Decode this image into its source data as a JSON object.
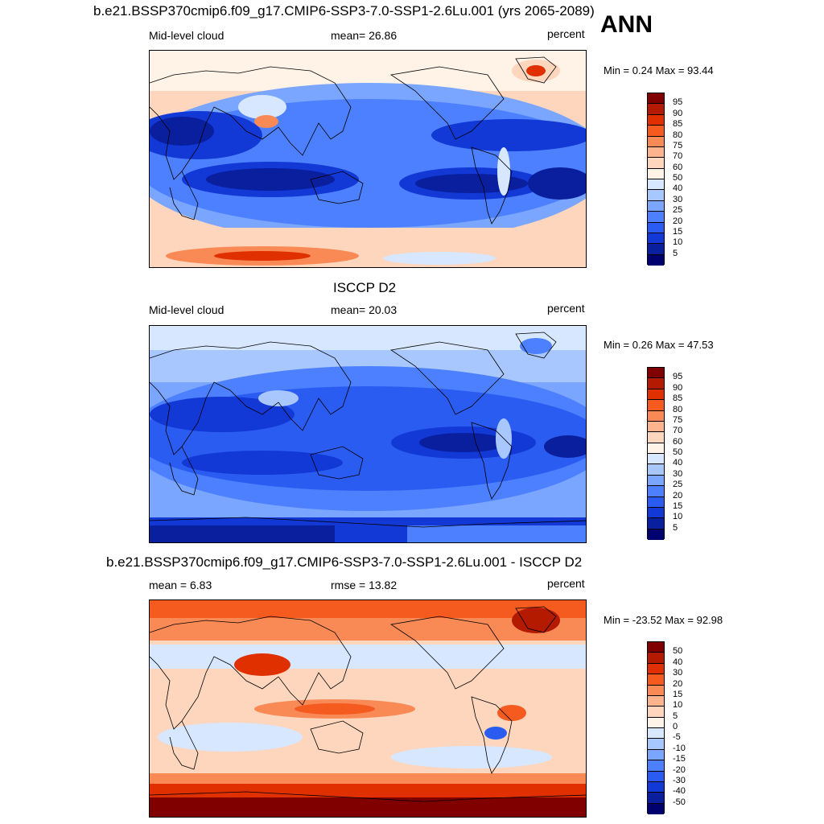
{
  "top_title": "b.e21.BSSP370cmip6.f09_g17.CMIP6-SSP3-7.0-SSP1-2.6Lu.001 (yrs 2065-2089)",
  "season": "ANN",
  "panels": [
    {
      "title": "",
      "left_label": "Mid-level cloud",
      "center_label": "mean=  26.86",
      "right_label": "percent",
      "minmax": "Min =   0.24 Max =  93.44",
      "levels": [
        "95",
        "90",
        "85",
        "80",
        "75",
        "70",
        "60",
        "50",
        "40",
        "30",
        "25",
        "20",
        "15",
        "10",
        "5"
      ]
    },
    {
      "title": "ISCCP D2",
      "left_label": "Mid-level cloud",
      "center_label": "mean=  20.03",
      "right_label": "percent",
      "minmax": "Min =   0.26 Max =  47.53",
      "levels": [
        "95",
        "90",
        "85",
        "80",
        "75",
        "70",
        "60",
        "50",
        "40",
        "30",
        "25",
        "20",
        "15",
        "10",
        "5"
      ]
    },
    {
      "title": "b.e21.BSSP370cmip6.f09_g17.CMIP6-SSP3-7.0-SSP1-2.6Lu.001 - ISCCP D2",
      "left_label": "mean =   6.83",
      "center_label": "rmse =  13.82",
      "right_label": "percent",
      "minmax": "Min = -23.52 Max =  92.98",
      "levels": [
        "50",
        "40",
        "30",
        "20",
        "15",
        "10",
        "5",
        "0",
        "-5",
        "-10",
        "-15",
        "-20",
        "-30",
        "-40",
        "-50"
      ]
    }
  ],
  "colors": {
    "colorbar": [
      "#800000",
      "#b31a00",
      "#e03000",
      "#f55a1f",
      "#fa8a55",
      "#fcb38e",
      "#fdd6bd",
      "#fff2e6",
      "#d6e7ff",
      "#a8c7ff",
      "#7aa6ff",
      "#4d80ff",
      "#2a5cf2",
      "#1238d6",
      "#0a1f9e",
      "#00006e"
    ],
    "model_map": [
      "#0a1f9e",
      "#1238d6",
      "#2a5cf2",
      "#4d80ff",
      "#7aa6ff",
      "#d6e7ff",
      "#fdd6bd",
      "#fa8a55",
      "#e03000"
    ],
    "obs_map": [
      "#0a1f9e",
      "#1238d6",
      "#2a5cf2",
      "#4d80ff",
      "#7aa6ff",
      "#d6e7ff"
    ],
    "diff_map": [
      "#800000",
      "#b31a00",
      "#e03000",
      "#f55a1f",
      "#fa8a55",
      "#fdd6bd",
      "#d6e7ff",
      "#7aa6ff",
      "#2a5cf2"
    ]
  }
}
